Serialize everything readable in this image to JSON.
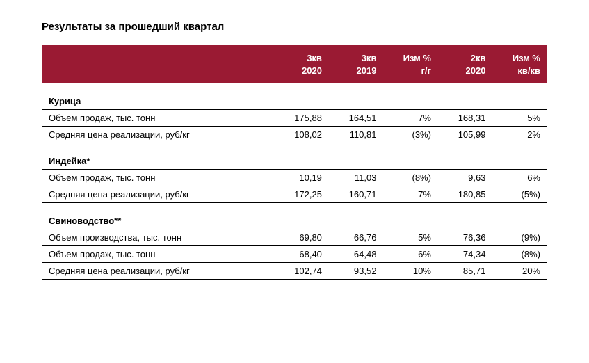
{
  "title": "Результаты за прошедший квартал",
  "colors": {
    "header_bg": "#9a1a33",
    "header_text": "#ffffff",
    "text": "#000000",
    "rule": "#000000"
  },
  "columns": [
    {
      "line1": "",
      "line2": ""
    },
    {
      "line1": "3кв",
      "line2": "2020"
    },
    {
      "line1": "3кв",
      "line2": "2019"
    },
    {
      "line1": "Изм %",
      "line2": "г/г"
    },
    {
      "line1": "2кв",
      "line2": "2020"
    },
    {
      "line1": "Изм %",
      "line2": "кв/кв"
    }
  ],
  "sections": [
    {
      "name": "Курица",
      "rows": [
        {
          "label": "Объем продаж, тыс. тонн",
          "values": [
            "175,88",
            "164,51",
            "7%",
            "168,31",
            "5%"
          ]
        },
        {
          "label": "Средняя цена реализации, руб/кг",
          "values": [
            "108,02",
            "110,81",
            "(3%)",
            "105,99",
            "2%"
          ]
        }
      ]
    },
    {
      "name": "Индейка*",
      "rows": [
        {
          "label": "Объем продаж, тыс. тонн",
          "values": [
            "10,19",
            "11,03",
            "(8%)",
            "9,63",
            "6%"
          ]
        },
        {
          "label": "Средняя цена реализации, руб/кг",
          "values": [
            "172,25",
            "160,71",
            "7%",
            "180,85",
            "(5%)"
          ]
        }
      ]
    },
    {
      "name": "Свиноводство**",
      "rows": [
        {
          "label": "Объем производства, тыс. тонн",
          "values": [
            "69,80",
            "66,76",
            "5%",
            "76,36",
            "(9%)"
          ]
        },
        {
          "label": "Объем продаж, тыс. тонн",
          "values": [
            "68,40",
            "64,48",
            "6%",
            "74,34",
            "(8%)"
          ]
        },
        {
          "label": "Средняя цена реализации, руб/кг",
          "values": [
            "102,74",
            "93,52",
            "10%",
            "85,71",
            "20%"
          ]
        }
      ]
    }
  ]
}
